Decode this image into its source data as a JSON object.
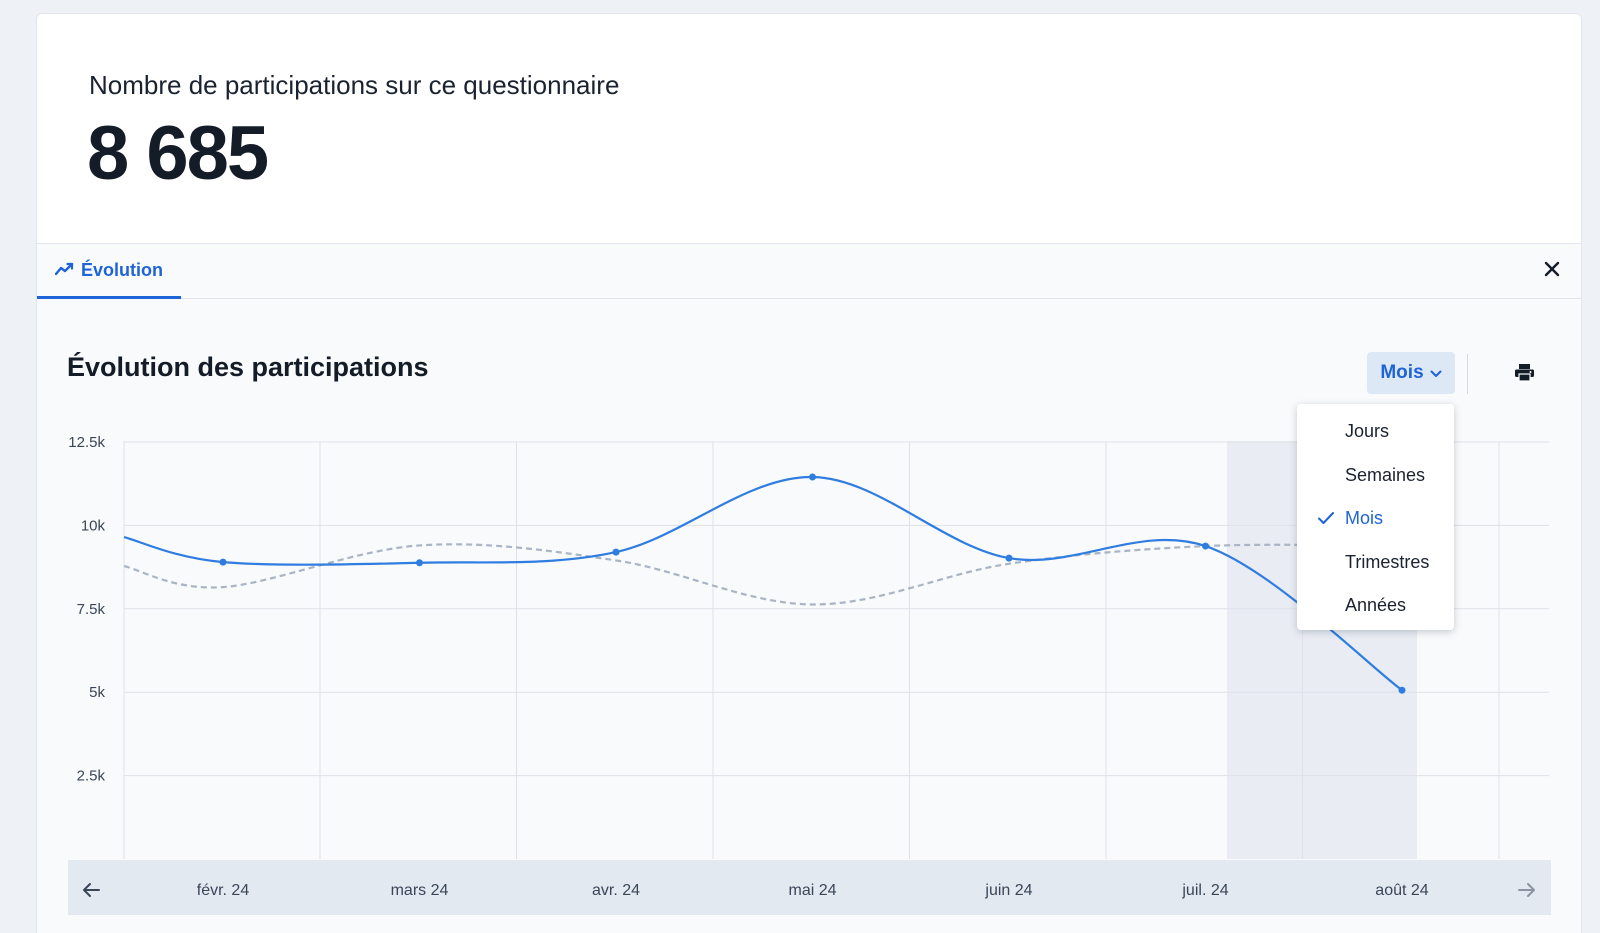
{
  "stat": {
    "label": "Nombre de participations sur ce questionnaire",
    "value": "8 685"
  },
  "tabs": [
    {
      "label": "Évolution",
      "icon": "trend-line-icon",
      "active": true
    }
  ],
  "chart": {
    "title": "Évolution des participations",
    "period_button": "Mois",
    "period_options": [
      "Jours",
      "Semaines",
      "Mois",
      "Trimestres",
      "Années"
    ],
    "selected_period": "Mois"
  },
  "colors": {
    "accent": "#1f63d8",
    "series_current": "#2f7de1",
    "series_previous": "#a9b4c4",
    "highlight_band": "#e9edf3",
    "timeline_bg": "#e3e9f1"
  },
  "chart_data": {
    "type": "line",
    "title": "Évolution des participations",
    "categories": [
      "févr. 24",
      "mars 24",
      "avr. 24",
      "mai 24",
      "juin 24",
      "juil. 24",
      "août 24"
    ],
    "y_ticks": [
      "12.5k",
      "10k",
      "7.5k",
      "5k",
      "2.5k"
    ],
    "ylim": [
      0,
      12500
    ],
    "grid": true,
    "legend": "none",
    "highlighted_range": [
      "juil. 24",
      "août 24"
    ],
    "series": [
      {
        "style": "solid",
        "values": [
          8900,
          8880,
          9200,
          11450,
          9020,
          9380,
          5060
        ]
      },
      {
        "style": "dashed",
        "values": [
          8150,
          9400,
          8950,
          7630,
          8850,
          9380,
          9380
        ]
      }
    ]
  }
}
